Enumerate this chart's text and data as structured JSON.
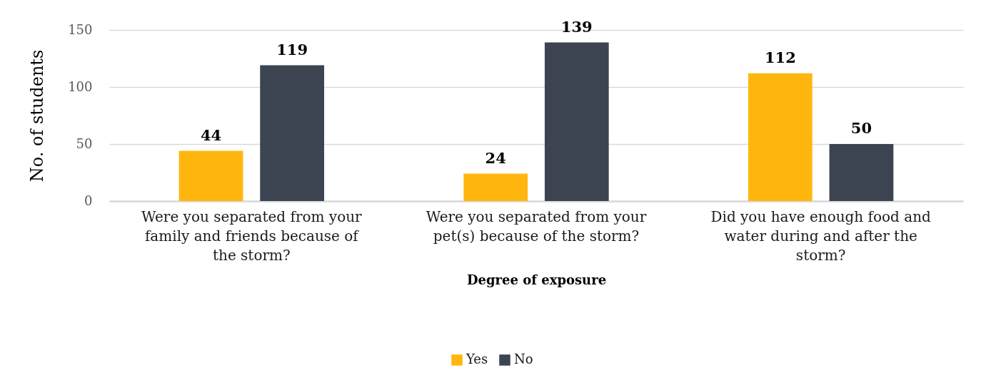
{
  "chart_data": {
    "type": "bar",
    "xlabel": "Degree of exposure",
    "ylabel": "No. of students",
    "categories": [
      "Were you separated from your family and friends because of the storm?",
      "Were you separated from your pet(s) because of the storm?",
      "Did you have enough food and water during and after the storm?"
    ],
    "series": [
      {
        "name": "Yes",
        "color": "#ffb70f",
        "values": [
          44,
          24,
          112
        ]
      },
      {
        "name": "No",
        "color": "#3c4452",
        "values": [
          119,
          139,
          50
        ]
      }
    ],
    "ylim": [
      0,
      150
    ],
    "yticks": [
      0,
      50,
      100,
      150
    ],
    "grid": "y",
    "legend": "bottom",
    "data_labels": true
  }
}
